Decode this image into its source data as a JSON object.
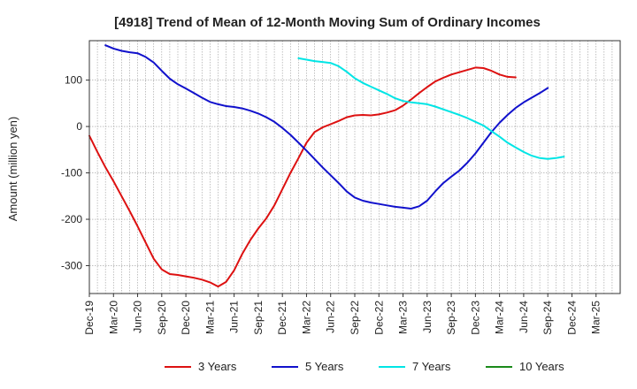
{
  "chart_data": {
    "type": "line",
    "title": "[4918]  Trend of Mean of 12-Month Moving Sum of Ordinary Incomes",
    "ylabel": "Amount (million yen)",
    "xlabel": "",
    "ylim": [
      -360,
      185
    ],
    "yticks": [
      100,
      0,
      -100,
      -200,
      -300
    ],
    "xlim": [
      0,
      66
    ],
    "x_tick_labels": [
      "Dec-19",
      "Mar-20",
      "Jun-20",
      "Sep-20",
      "Dec-20",
      "Mar-21",
      "Jun-21",
      "Sep-21",
      "Dec-21",
      "Mar-22",
      "Jun-22",
      "Sep-22",
      "Dec-22",
      "Mar-23",
      "Jun-23",
      "Sep-23",
      "Dec-23",
      "Mar-24",
      "Jun-24",
      "Sep-24",
      "Dec-24",
      "Mar-25"
    ],
    "x_tick_months": [
      0,
      3,
      6,
      9,
      12,
      15,
      18,
      21,
      24,
      27,
      30,
      33,
      36,
      39,
      42,
      45,
      48,
      51,
      54,
      57,
      60,
      63
    ],
    "grid": {
      "vertical_every_month": true,
      "horizontal": true
    },
    "legend_position": "bottom",
    "series": [
      {
        "name": "3 Years",
        "color": "#dd1111",
        "start_month": 0,
        "values": [
          -20,
          -55,
          -88,
          -118,
          -150,
          -182,
          -215,
          -250,
          -285,
          -308,
          -318,
          -320,
          -323,
          -326,
          -330,
          -336,
          -345,
          -335,
          -310,
          -275,
          -245,
          -220,
          -198,
          -170,
          -135,
          -100,
          -68,
          -35,
          -12,
          -2,
          5,
          12,
          20,
          24,
          25,
          24,
          26,
          30,
          35,
          45,
          58,
          72,
          85,
          97,
          105,
          112,
          117,
          122,
          127,
          126,
          120,
          112,
          107,
          106
        ]
      },
      {
        "name": "5 Years",
        "color": "#1111cc",
        "start_month": 2,
        "values": [
          175,
          168,
          163,
          160,
          158,
          150,
          138,
          120,
          103,
          91,
          82,
          72,
          62,
          53,
          48,
          44,
          42,
          39,
          34,
          28,
          20,
          10,
          -3,
          -18,
          -35,
          -52,
          -70,
          -88,
          -105,
          -122,
          -140,
          -153,
          -160,
          -164,
          -167,
          -170,
          -173,
          -175,
          -177,
          -172,
          -160,
          -140,
          -122,
          -108,
          -95,
          -78,
          -58,
          -35,
          -12,
          8,
          25,
          40,
          52,
          62,
          72,
          83
        ]
      },
      {
        "name": "7 Years",
        "color": "#00e5e5",
        "start_month": 26,
        "values": [
          147,
          144,
          141,
          139,
          137,
          130,
          118,
          104,
          94,
          86,
          78,
          70,
          61,
          55,
          52,
          50,
          48,
          43,
          37,
          31,
          25,
          18,
          10,
          2,
          -10,
          -22,
          -35,
          -45,
          -55,
          -63,
          -68,
          -70,
          -68,
          -65
        ]
      },
      {
        "name": "10 Years",
        "color": "#1a8a1a",
        "start_month": 0,
        "values": []
      }
    ]
  }
}
